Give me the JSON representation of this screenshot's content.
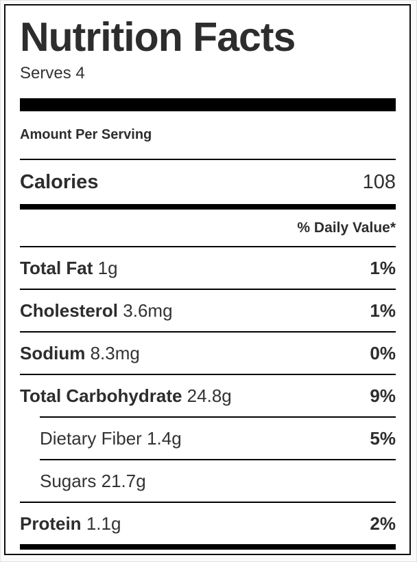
{
  "label": {
    "title": "Nutrition Facts",
    "serving_info": "Serves 4",
    "amount_per_serving_label": "Amount Per Serving",
    "calories": {
      "name": "Calories",
      "value": "108"
    },
    "daily_value_header": "% Daily Value*",
    "rows": [
      {
        "name": "Total Fat",
        "amount": "1g",
        "daily_value": "1%",
        "indent": false
      },
      {
        "name": "Cholesterol",
        "amount": "3.6mg",
        "daily_value": "1%",
        "indent": false
      },
      {
        "name": "Sodium",
        "amount": "8.3mg",
        "daily_value": "0%",
        "indent": false
      },
      {
        "name": "Total Carbohydrate",
        "amount": "24.8g",
        "daily_value": "9%",
        "indent": false
      },
      {
        "name": "Dietary Fiber",
        "amount": "1.4g",
        "daily_value": "5%",
        "indent": true
      },
      {
        "name": "Sugars",
        "amount": "21.7g",
        "daily_value": "",
        "indent": true
      },
      {
        "name": "Protein",
        "amount": "1.1g",
        "daily_value": "2%",
        "indent": false
      }
    ],
    "colors": {
      "text": "#2d2d2d",
      "rule": "#000000",
      "background": "#ffffff"
    }
  }
}
